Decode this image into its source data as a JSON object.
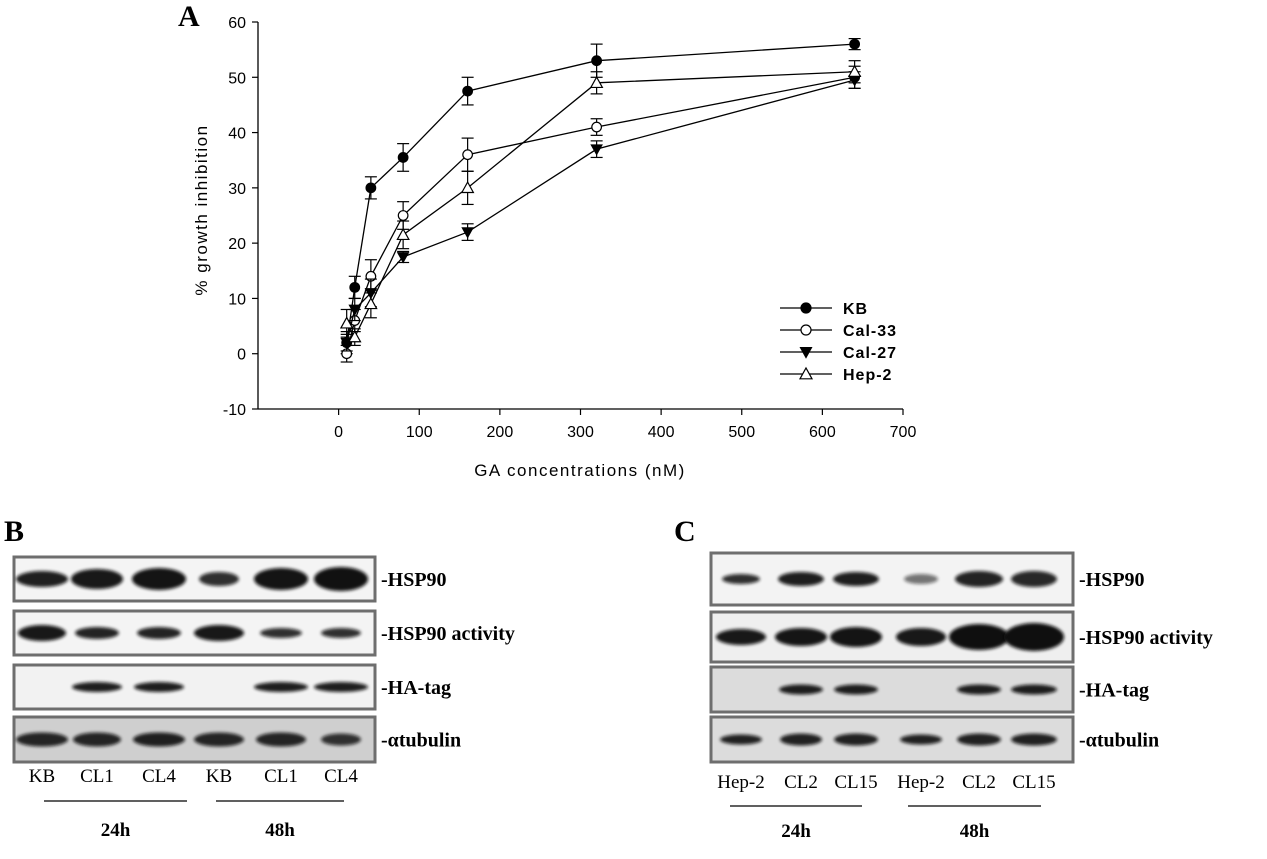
{
  "panels": {
    "a": "A",
    "b": "B",
    "c": "C"
  },
  "chart_data": {
    "type": "line",
    "xlabel": "GA concentrations (nM)",
    "ylabel": "% growth inhibition",
    "xlim": [
      -100,
      700
    ],
    "ylim": [
      -10,
      60
    ],
    "xticks": [
      "0",
      "100",
      "200",
      "300",
      "400",
      "500",
      "600",
      "700"
    ],
    "yticks": [
      "-10",
      "0",
      "10",
      "20",
      "30",
      "40",
      "50",
      "60"
    ],
    "legend_position": "bottom-right",
    "grid": false,
    "series": [
      {
        "name": "KB",
        "marker": "filled-circle",
        "x": [
          10,
          20,
          40,
          80,
          160,
          320,
          640
        ],
        "y": [
          2,
          12,
          30,
          35.5,
          47.5,
          53,
          56
        ],
        "err": [
          2,
          2,
          2,
          2.5,
          2.5,
          3,
          1
        ]
      },
      {
        "name": "Cal-33",
        "marker": "open-circle",
        "x": [
          10,
          20,
          40,
          80,
          160,
          320,
          640
        ],
        "y": [
          0,
          6,
          14,
          25,
          36,
          41,
          50
        ],
        "err": [
          1.5,
          2,
          3,
          2.5,
          3,
          1.5,
          2
        ]
      },
      {
        "name": "Cal-27",
        "marker": "filled-triangle-down",
        "x": [
          10,
          20,
          40,
          80,
          160,
          320,
          640
        ],
        "y": [
          2,
          8,
          11,
          17.5,
          22,
          37,
          49.5
        ],
        "err": [
          1.5,
          2,
          2.5,
          1,
          1.5,
          1.5,
          1.5
        ]
      },
      {
        "name": "Hep-2",
        "marker": "open-triangle-up",
        "x": [
          10,
          20,
          40,
          80,
          160,
          320,
          640
        ],
        "y": [
          5.5,
          3,
          9,
          21.5,
          30,
          49,
          51
        ],
        "err": [
          2.5,
          1.5,
          2.5,
          2.5,
          3,
          2,
          2
        ]
      }
    ]
  },
  "blot_b": {
    "rows": [
      "-HSP90",
      "-HSP90 activity",
      "-HA-tag",
      "-αtubulin"
    ],
    "lanes": [
      "KB",
      "CL1",
      "CL4",
      "KB",
      "CL1",
      "CL4"
    ],
    "groups": [
      "24h",
      "48h"
    ]
  },
  "blot_c": {
    "rows": [
      "-HSP90",
      "-HSP90 activity",
      "-HA-tag",
      "-αtubulin"
    ],
    "lanes": [
      "Hep-2",
      "CL2",
      "CL15",
      "Hep-2",
      "CL2",
      "CL15"
    ],
    "groups": [
      "24h",
      "48h"
    ]
  }
}
